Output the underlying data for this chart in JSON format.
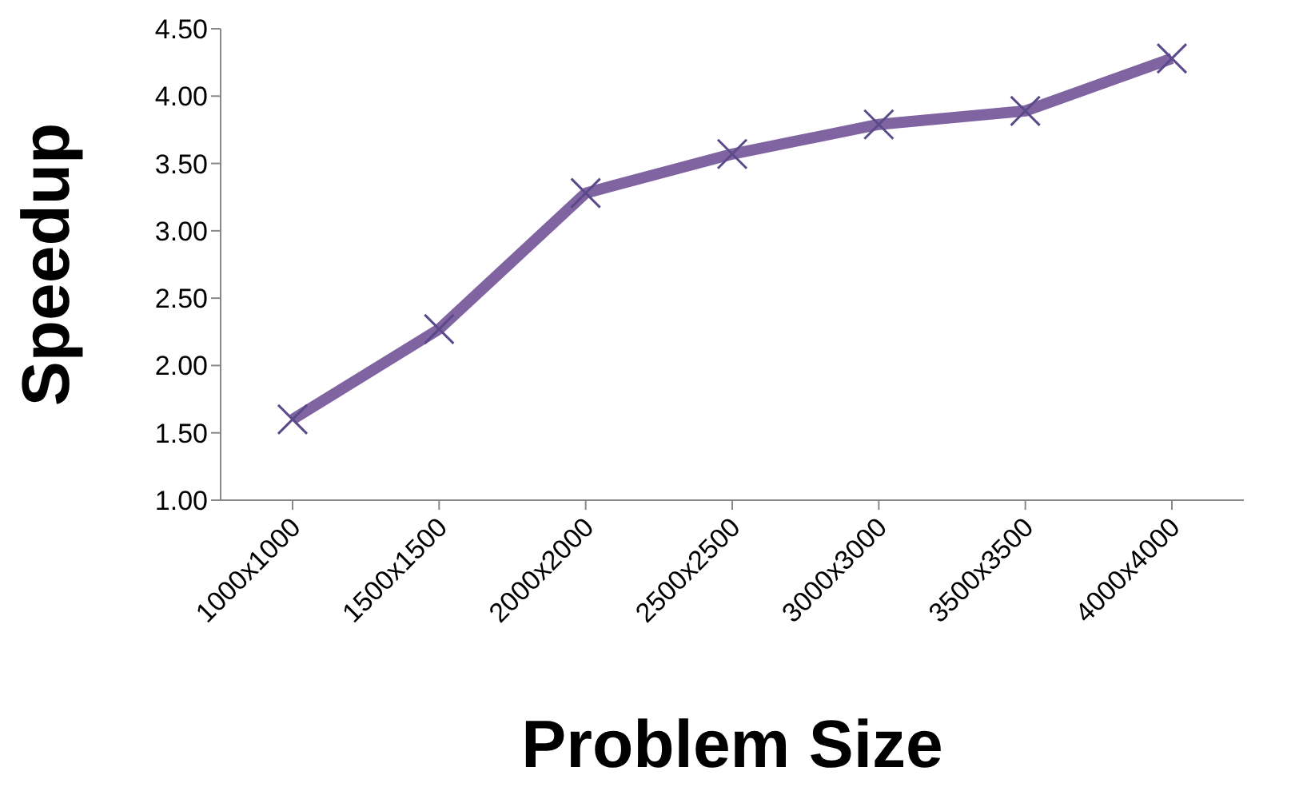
{
  "chart_data": {
    "type": "line",
    "xlabel": "Problem Size",
    "ylabel": "Speedup",
    "categories": [
      "1000x1000",
      "1500x1500",
      "2000x2000",
      "2500x2500",
      "3000x3000",
      "3500x3500",
      "4000x4000"
    ],
    "series": [
      {
        "color": "#8064a2",
        "values": [
          1.6,
          2.27,
          3.28,
          3.57,
          3.79,
          3.89,
          4.28
        ]
      }
    ],
    "ylim": [
      1,
      4.5
    ],
    "yticks": [
      {
        "value": 1,
        "label": "1.00"
      },
      {
        "value": 1.5,
        "label": "1.50"
      },
      {
        "value": 2,
        "label": "2.00"
      },
      {
        "value": 2.5,
        "label": "2.50"
      },
      {
        "value": 3,
        "label": "3.00"
      },
      {
        "value": 3.5,
        "label": "3.50"
      },
      {
        "value": 4,
        "label": "4.00"
      },
      {
        "value": 4.5,
        "label": "4.50"
      }
    ],
    "grid": false,
    "legend": false,
    "marker": "cross",
    "line_style": "solid"
  }
}
